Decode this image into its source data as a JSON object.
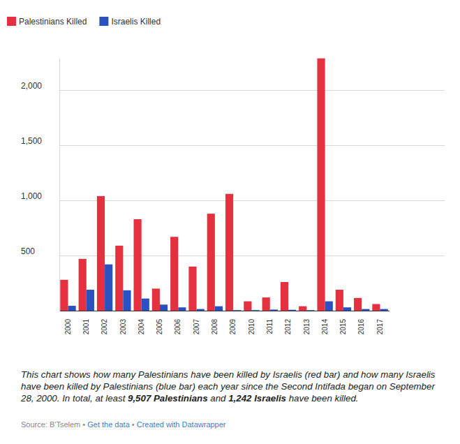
{
  "chart_data": {
    "type": "bar",
    "categories": [
      "2000",
      "2001",
      "2002",
      "2003",
      "2004",
      "2005",
      "2006",
      "2007",
      "2008",
      "2009",
      "2010",
      "2011",
      "2012",
      "2013",
      "2014",
      "2015",
      "2016",
      "2017"
    ],
    "series": [
      {
        "name": "Palestinians Killed",
        "color": "#e5313f",
        "values": [
          280,
          470,
          1040,
          590,
          830,
          200,
          670,
          400,
          880,
          1060,
          85,
          120,
          260,
          40,
          2290,
          190,
          115,
          60
        ]
      },
      {
        "name": "Israelis Killed",
        "color": "#2b50c0",
        "values": [
          44,
          190,
          420,
          185,
          110,
          55,
          30,
          15,
          40,
          5,
          5,
          10,
          8,
          5,
          85,
          30,
          15,
          15
        ]
      }
    ],
    "ylim": [
      0,
      2300
    ],
    "yticks": [
      500,
      {
        "value": 1000,
        "label": "1,000"
      },
      {
        "value": 1500,
        "label": "1,500"
      },
      {
        "value": 2000,
        "label": "2,000"
      }
    ],
    "grid": true,
    "legend": "top-left",
    "caption": [
      "This chart shows how many Palestinians have been killed by Israelis (red bar) and how many Israelis have been killed by Palestinians (blue bar) each year since the Second Intifada began on September 28, 2000. In total, at least ",
      "9,507 Palestinians",
      " and ",
      "1,242 Israelis",
      " have been killed."
    ],
    "source": [
      "Source: B'Tselem",
      " • ",
      "Get the data",
      " • ",
      "Created with Datawrapper"
    ]
  }
}
